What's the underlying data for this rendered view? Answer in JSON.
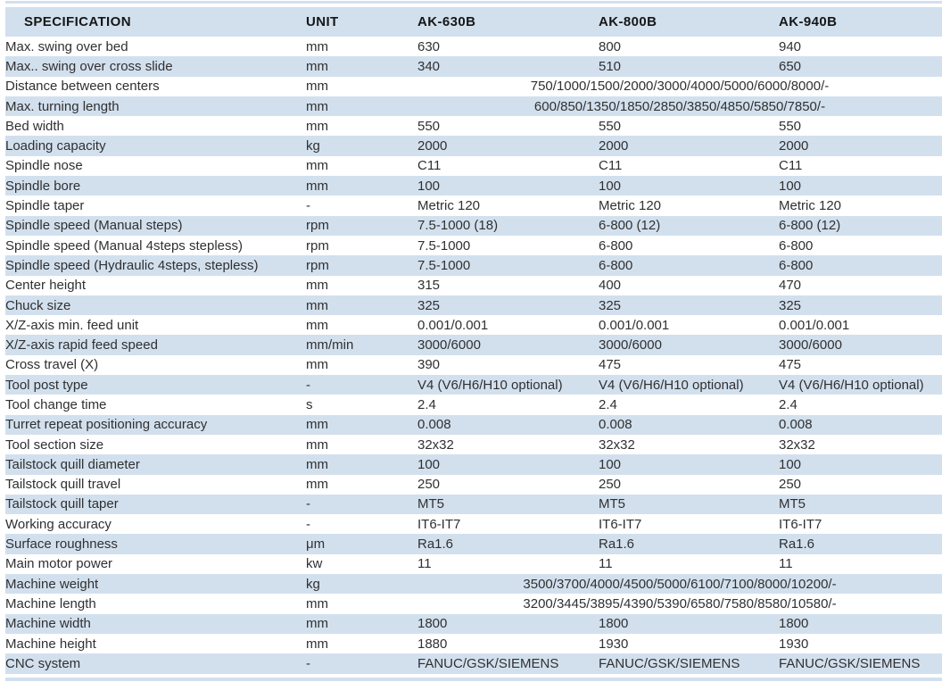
{
  "colors": {
    "row_blue": "#d2e0ee",
    "row_white": "#ffffff",
    "header_text": "#161616",
    "body_text": "#303030"
  },
  "table": {
    "columns": [
      "SPECIFICATION",
      "UNIT",
      "AK-630B",
      "AK-800B",
      "AK-940B"
    ],
    "rows": [
      {
        "spec": "Max. swing over bed",
        "unit": "mm",
        "values": [
          "630",
          "800",
          "940"
        ]
      },
      {
        "spec": "Max.. swing over cross slide",
        "unit": "mm",
        "values": [
          "340",
          "510",
          "650"
        ]
      },
      {
        "spec": "Distance between centers",
        "unit": "mm",
        "span": "750/1000/1500/2000/3000/4000/5000/6000/8000/-"
      },
      {
        "spec": "Max. turning length",
        "unit": "mm",
        "span": "600/850/1350/1850/2850/3850/4850/5850/7850/-"
      },
      {
        "spec": "Bed width",
        "unit": "mm",
        "values": [
          "550",
          "550",
          "550"
        ]
      },
      {
        "spec": "Loading capacity",
        "unit": "kg",
        "values": [
          "2000",
          "2000",
          "2000"
        ]
      },
      {
        "spec": "Spindle nose",
        "unit": "mm",
        "values": [
          "C11",
          "C11",
          "C11"
        ]
      },
      {
        "spec": "Spindle bore",
        "unit": "mm",
        "values": [
          "100",
          "100",
          "100"
        ]
      },
      {
        "spec": "Spindle taper",
        "unit": "-",
        "values": [
          "Metric 120",
          "Metric 120",
          "Metric 120"
        ]
      },
      {
        "spec": "Spindle speed (Manual steps)",
        "unit": "rpm",
        "values": [
          "7.5-1000 (18)",
          "6-800 (12)",
          "6-800 (12)"
        ]
      },
      {
        "spec": "Spindle speed (Manual 4steps stepless)",
        "unit": "rpm",
        "values": [
          "7.5-1000",
          "6-800",
          "6-800"
        ]
      },
      {
        "spec": "Spindle speed (Hydraulic 4steps, stepless)",
        "unit": "rpm",
        "values": [
          "7.5-1000",
          "6-800",
          "6-800"
        ]
      },
      {
        "spec": "Center height",
        "unit": "mm",
        "values": [
          "315",
          "400",
          "470"
        ]
      },
      {
        "spec": "Chuck size",
        "unit": "mm",
        "values": [
          "325",
          "325",
          "325"
        ]
      },
      {
        "spec": "X/Z-axis min. feed unit",
        "unit": "mm",
        "values": [
          "0.001/0.001",
          "0.001/0.001",
          "0.001/0.001"
        ]
      },
      {
        "spec": "X/Z-axis rapid feed speed",
        "unit": "mm/min",
        "values": [
          "3000/6000",
          "3000/6000",
          "3000/6000"
        ]
      },
      {
        "spec": "Cross travel (X)",
        "unit": "mm",
        "values": [
          "390",
          "475",
          "475"
        ]
      },
      {
        "spec": "Tool post type",
        "unit": "-",
        "values": [
          "V4 (V6/H6/H10 optional)",
          "V4 (V6/H6/H10 optional)",
          "V4 (V6/H6/H10 optional)"
        ]
      },
      {
        "spec": "Tool change time",
        "unit": "s",
        "values": [
          "2.4",
          "2.4",
          "2.4"
        ]
      },
      {
        "spec": "Turret repeat positioning accuracy",
        "unit": "mm",
        "values": [
          "0.008",
          "0.008",
          "0.008"
        ]
      },
      {
        "spec": "Tool section size",
        "unit": "mm",
        "values": [
          "32x32",
          "32x32",
          "32x32"
        ]
      },
      {
        "spec": "Tailstock quill diameter",
        "unit": "mm",
        "values": [
          "100",
          "100",
          "100"
        ]
      },
      {
        "spec": "Tailstock quill travel",
        "unit": "mm",
        "values": [
          "250",
          "250",
          "250"
        ]
      },
      {
        "spec": "Tailstock quill taper",
        "unit": "-",
        "values": [
          "MT5",
          "MT5",
          "MT5"
        ]
      },
      {
        "spec": "Working accuracy",
        "unit": "-",
        "values": [
          "IT6-IT7",
          "IT6-IT7",
          "IT6-IT7"
        ]
      },
      {
        "spec": "Surface roughness",
        "unit": "μm",
        "values": [
          "Ra1.6",
          "Ra1.6",
          "Ra1.6"
        ]
      },
      {
        "spec": "Main motor power",
        "unit": "kw",
        "values": [
          "11",
          "11",
          "11"
        ]
      },
      {
        "spec": "Machine weight",
        "unit": "kg",
        "span": "3500/3700/4000/4500/5000/6100/7100/8000/10200/-"
      },
      {
        "spec": "Machine length",
        "unit": "mm",
        "span": "3200/3445/3895/4390/5390/6580/7580/8580/10580/-"
      },
      {
        "spec": "Machine width",
        "unit": "mm",
        "values": [
          "1800",
          "1800",
          "1800"
        ]
      },
      {
        "spec": "Machine height",
        "unit": "mm",
        "values": [
          "1880",
          "1930",
          "1930"
        ]
      },
      {
        "spec": "CNC system",
        "unit": "-",
        "values": [
          "FANUC/GSK/SIEMENS",
          "FANUC/GSK/SIEMENS",
          "FANUC/GSK/SIEMENS"
        ]
      }
    ]
  }
}
